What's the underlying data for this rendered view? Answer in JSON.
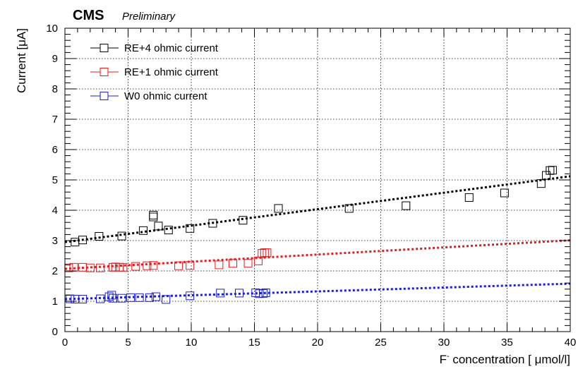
{
  "chart_data": {
    "type": "scatter",
    "experiment": "CMS",
    "experiment_tag": "Preliminary",
    "xlabel_prefix": "F",
    "xlabel_superscript": "-",
    "xlabel_suffix": " concentration [ μmol/l]",
    "ylabel": "Current [μA]",
    "xlim": [
      0,
      40
    ],
    "ylim": [
      0,
      10
    ],
    "x_ticks": [
      0,
      5,
      10,
      15,
      20,
      25,
      30,
      35,
      40
    ],
    "y_ticks": [
      0,
      1,
      2,
      3,
      4,
      5,
      6,
      7,
      8,
      9,
      10
    ],
    "grid": true,
    "legend_position": "top-left",
    "series": [
      {
        "name": "RE+4 ohmic current",
        "color": "#000000",
        "marker": "open-square",
        "fit": [
          [
            0,
            2.95
          ],
          [
            40,
            5.12
          ]
        ],
        "points": [
          [
            0.8,
            2.95
          ],
          [
            1.4,
            3.02
          ],
          [
            2.7,
            3.14
          ],
          [
            4.5,
            3.15
          ],
          [
            6.2,
            3.33
          ],
          [
            7.0,
            3.84
          ],
          [
            7.0,
            3.78
          ],
          [
            7.4,
            3.48
          ],
          [
            8.2,
            3.35
          ],
          [
            9.9,
            3.4
          ],
          [
            11.7,
            3.57
          ],
          [
            14.1,
            3.67
          ],
          [
            16.9,
            4.06
          ],
          [
            22.5,
            4.06
          ],
          [
            27.0,
            4.15
          ],
          [
            32.0,
            4.42
          ],
          [
            34.8,
            4.57
          ],
          [
            37.7,
            4.88
          ],
          [
            38.1,
            5.15
          ],
          [
            38.4,
            5.31
          ],
          [
            38.6,
            5.32
          ]
        ]
      },
      {
        "name": "RE+1 ohmic current",
        "color": "#e8191d",
        "marker": "open-square",
        "fit": [
          [
            0,
            2.07
          ],
          [
            40,
            3.01
          ]
        ],
        "points": [
          [
            0.3,
            2.1
          ],
          [
            0.7,
            2.12
          ],
          [
            1.4,
            2.12
          ],
          [
            2.0,
            2.1
          ],
          [
            2.8,
            2.1
          ],
          [
            3.8,
            2.12
          ],
          [
            4.0,
            2.13
          ],
          [
            4.3,
            2.12
          ],
          [
            4.6,
            2.12
          ],
          [
            5.6,
            2.15
          ],
          [
            6.5,
            2.17
          ],
          [
            7.0,
            2.18
          ],
          [
            9.0,
            2.17
          ],
          [
            9.9,
            2.18
          ],
          [
            12.2,
            2.2
          ],
          [
            13.3,
            2.25
          ],
          [
            14.5,
            2.25
          ],
          [
            15.3,
            2.33
          ],
          [
            15.6,
            2.58
          ],
          [
            15.8,
            2.6
          ],
          [
            16.0,
            2.6
          ]
        ]
      },
      {
        "name": "W0 ohmic current",
        "color": "#1b1ed6",
        "marker": "open-square",
        "fit": [
          [
            0,
            1.07
          ],
          [
            40,
            1.58
          ]
        ],
        "points": [
          [
            0.4,
            1.08
          ],
          [
            0.8,
            1.07
          ],
          [
            1.4,
            1.07
          ],
          [
            2.8,
            1.08
          ],
          [
            3.5,
            1.15
          ],
          [
            3.7,
            1.2
          ],
          [
            3.8,
            1.1
          ],
          [
            4.5,
            1.1
          ],
          [
            5.2,
            1.12
          ],
          [
            5.9,
            1.12
          ],
          [
            6.7,
            1.12
          ],
          [
            7.2,
            1.15
          ],
          [
            8.0,
            1.06
          ],
          [
            9.9,
            1.18
          ],
          [
            12.3,
            1.27
          ],
          [
            13.8,
            1.27
          ],
          [
            15.1,
            1.28
          ],
          [
            15.4,
            1.25
          ],
          [
            15.7,
            1.26
          ],
          [
            15.9,
            1.28
          ]
        ]
      }
    ]
  }
}
